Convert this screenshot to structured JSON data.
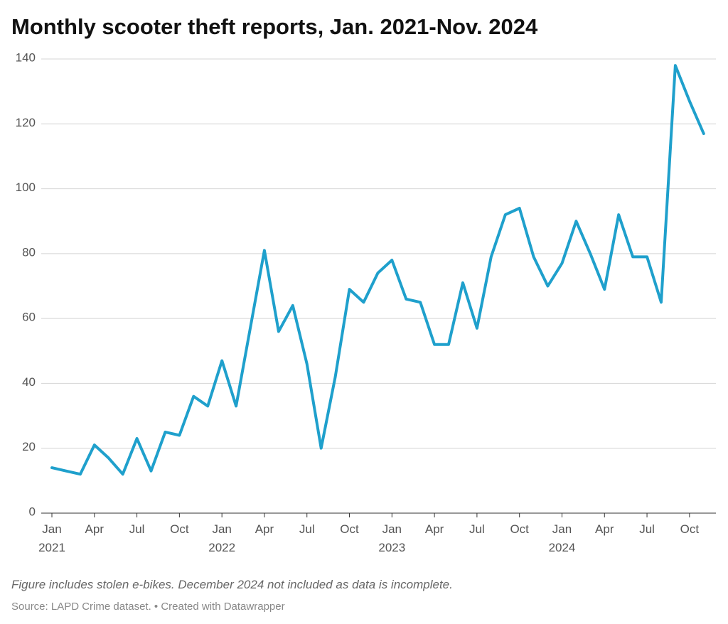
{
  "chart_data": {
    "type": "line",
    "title": "Monthly scooter theft reports, Jan. 2021-Nov. 2024",
    "note": "Figure includes stolen e-bikes. December 2024 not included as data is incomplete.",
    "source": "Source: LAPD Crime dataset. • Created with Datawrapper",
    "x": [
      "2021-01",
      "2021-02",
      "2021-03",
      "2021-04",
      "2021-05",
      "2021-06",
      "2021-07",
      "2021-08",
      "2021-09",
      "2021-10",
      "2021-11",
      "2021-12",
      "2022-01",
      "2022-02",
      "2022-03",
      "2022-04",
      "2022-05",
      "2022-06",
      "2022-07",
      "2022-08",
      "2022-09",
      "2022-10",
      "2022-11",
      "2022-12",
      "2023-01",
      "2023-02",
      "2023-03",
      "2023-04",
      "2023-05",
      "2023-06",
      "2023-07",
      "2023-08",
      "2023-09",
      "2023-10",
      "2023-11",
      "2023-12",
      "2024-01",
      "2024-02",
      "2024-03",
      "2024-04",
      "2024-05",
      "2024-06",
      "2024-07",
      "2024-08",
      "2024-09",
      "2024-10",
      "2024-11"
    ],
    "values": [
      14,
      13,
      12,
      21,
      17,
      12,
      23,
      13,
      25,
      24,
      36,
      33,
      47,
      33,
      57,
      81,
      56,
      64,
      46,
      20,
      42,
      69,
      65,
      74,
      78,
      66,
      65,
      52,
      52,
      71,
      57,
      79,
      92,
      94,
      79,
      70,
      77,
      90,
      80,
      69,
      92,
      79,
      79,
      65,
      138,
      127,
      117
    ],
    "color": "#1fa0cc",
    "ylim": [
      0,
      140
    ],
    "yticks": [
      0,
      20,
      40,
      60,
      80,
      100,
      120,
      140
    ],
    "xticks": [
      {
        "value": "2021-01",
        "label": "Jan 2021"
      },
      {
        "value": "2021-04",
        "label": "Apr"
      },
      {
        "value": "2021-07",
        "label": "Jul"
      },
      {
        "value": "2021-10",
        "label": "Oct"
      },
      {
        "value": "2022-01",
        "label": "Jan 2022"
      },
      {
        "value": "2022-04",
        "label": "Apr"
      },
      {
        "value": "2022-07",
        "label": "Jul"
      },
      {
        "value": "2022-10",
        "label": "Oct"
      },
      {
        "value": "2023-01",
        "label": "Jan 2023"
      },
      {
        "value": "2023-04",
        "label": "Apr"
      },
      {
        "value": "2023-07",
        "label": "Jul"
      },
      {
        "value": "2023-10",
        "label": "Oct"
      },
      {
        "value": "2024-01",
        "label": "Jan 2024"
      },
      {
        "value": "2024-04",
        "label": "Apr"
      },
      {
        "value": "2024-07",
        "label": "Jul"
      },
      {
        "value": "2024-10",
        "label": "Oct"
      }
    ],
    "grid": true
  }
}
